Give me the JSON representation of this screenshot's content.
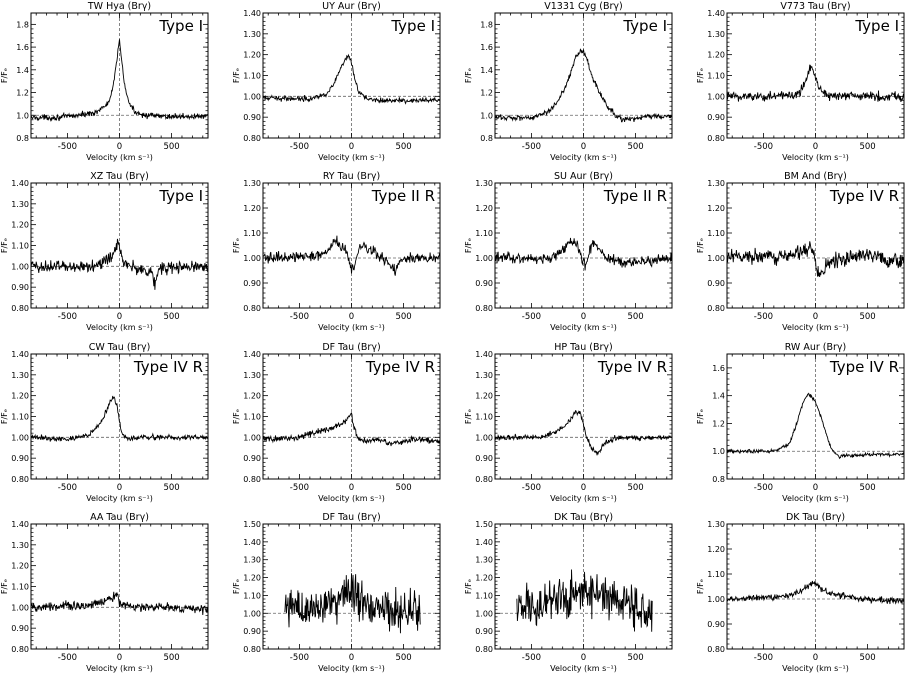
{
  "xtick_labels": [
    "-500",
    "0",
    "500"
  ],
  "xtick_values": [
    -500,
    0,
    500
  ],
  "xlim": [
    -850,
    850
  ],
  "xlabel": "Velocity (km s⁻¹)",
  "ylabel": "F/Fₑ",
  "chart_data": [
    {
      "type": "line",
      "title": "TW Hya (Brγ)",
      "label": "Type I",
      "ylim": [
        0.8,
        1.9
      ],
      "yticks": [
        0.8,
        1.0,
        1.2,
        1.4,
        1.6,
        1.8
      ],
      "ytick_labels": [
        "0.8",
        "1.0",
        "1.2",
        "1.4",
        "1.6",
        "1.8"
      ],
      "x": [
        -850,
        -600,
        -400,
        -250,
        -150,
        -100,
        -60,
        -30,
        0,
        20,
        50,
        100,
        150,
        250,
        400,
        600,
        850
      ],
      "y": [
        0.98,
        0.98,
        1.0,
        1.02,
        1.07,
        1.12,
        1.25,
        1.45,
        1.67,
        1.5,
        1.25,
        1.09,
        1.03,
        1.0,
        0.99,
        0.99,
        0.99
      ],
      "noise": 0.012
    },
    {
      "type": "line",
      "title": "UY Aur (Brγ)",
      "label": "Type I",
      "ylim": [
        0.8,
        1.4
      ],
      "yticks": [
        0.8,
        0.9,
        1.0,
        1.1,
        1.2,
        1.3,
        1.4
      ],
      "ytick_labels": [
        "0.80",
        "0.90",
        "1.00",
        "1.10",
        "1.20",
        "1.30",
        "1.40"
      ],
      "x": [
        -850,
        -400,
        -250,
        -180,
        -130,
        -90,
        -50,
        -20,
        0,
        30,
        70,
        150,
        300,
        850
      ],
      "y": [
        0.99,
        0.99,
        1.01,
        1.05,
        1.1,
        1.15,
        1.18,
        1.19,
        1.16,
        1.08,
        1.02,
        0.99,
        0.98,
        0.98
      ],
      "noise": 0.006
    },
    {
      "type": "line",
      "title": "V1331 Cyg (Brγ)",
      "label": "Type I",
      "ylim": [
        0.8,
        1.9
      ],
      "yticks": [
        0.8,
        1.0,
        1.2,
        1.4,
        1.6,
        1.8
      ],
      "ytick_labels": [
        "0.8",
        "1.0",
        "1.2",
        "1.4",
        "1.6",
        "1.8"
      ],
      "x": [
        -850,
        -500,
        -350,
        -250,
        -150,
        -80,
        -30,
        0,
        30,
        80,
        150,
        250,
        350,
        450,
        600,
        850
      ],
      "y": [
        0.98,
        0.98,
        1.02,
        1.12,
        1.3,
        1.5,
        1.57,
        1.56,
        1.5,
        1.35,
        1.2,
        1.05,
        0.97,
        0.96,
        0.99,
        0.99
      ],
      "noise": 0.012
    },
    {
      "type": "line",
      "title": "V773 Tau (Brγ)",
      "label": "Type I",
      "ylim": [
        0.8,
        1.4
      ],
      "yticks": [
        0.8,
        0.9,
        1.0,
        1.1,
        1.2,
        1.3,
        1.4
      ],
      "ytick_labels": [
        "0.80",
        "0.90",
        "1.00",
        "1.10",
        "1.20",
        "1.30",
        "1.40"
      ],
      "x": [
        -850,
        -300,
        -150,
        -100,
        -60,
        -40,
        -20,
        0,
        40,
        100,
        200,
        850
      ],
      "y": [
        1.0,
        1.0,
        1.02,
        1.07,
        1.13,
        1.15,
        1.12,
        1.1,
        1.04,
        1.01,
        1.0,
        1.0
      ],
      "noise": 0.012
    },
    {
      "type": "line",
      "title": "XZ Tau (Brγ)",
      "label": "Type I",
      "ylim": [
        0.8,
        1.4
      ],
      "yticks": [
        0.8,
        0.9,
        1.0,
        1.1,
        1.2,
        1.3,
        1.4
      ],
      "ytick_labels": [
        "0.80",
        "0.90",
        "1.00",
        "1.10",
        "1.20",
        "1.30",
        "1.40"
      ],
      "x": [
        -850,
        -300,
        -100,
        -50,
        -20,
        0,
        30,
        80,
        200,
        300,
        340,
        380,
        850
      ],
      "y": [
        1.0,
        1.0,
        1.03,
        1.07,
        1.12,
        1.1,
        1.02,
        1.0,
        0.99,
        0.97,
        0.92,
        0.99,
        1.0
      ],
      "noise": 0.015
    },
    {
      "type": "line",
      "title": "RY Tau (Brγ)",
      "label": "Type II R",
      "ylim": [
        0.8,
        1.3
      ],
      "yticks": [
        0.8,
        0.9,
        1.0,
        1.1,
        1.2,
        1.3
      ],
      "ytick_labels": [
        "0.80",
        "0.90",
        "1.00",
        "1.10",
        "1.20",
        "1.30"
      ],
      "x": [
        -850,
        -300,
        -200,
        -150,
        -100,
        -50,
        -10,
        20,
        60,
        100,
        200,
        300,
        380,
        420,
        470,
        600,
        850
      ],
      "y": [
        1.0,
        1.01,
        1.04,
        1.07,
        1.05,
        1.03,
        0.96,
        0.95,
        1.02,
        1.05,
        1.03,
        1.0,
        0.97,
        0.95,
        1.0,
        1.0,
        1.0
      ],
      "noise": 0.01
    },
    {
      "type": "line",
      "title": "SU Aur (Brγ)",
      "label": "Type II R",
      "ylim": [
        0.8,
        1.3
      ],
      "yticks": [
        0.8,
        0.9,
        1.0,
        1.1,
        1.2,
        1.3
      ],
      "ytick_labels": [
        "0.80",
        "0.90",
        "1.00",
        "1.10",
        "1.20",
        "1.30"
      ],
      "x": [
        -850,
        -300,
        -200,
        -120,
        -60,
        -20,
        20,
        60,
        100,
        150,
        220,
        300,
        400,
        850
      ],
      "y": [
        1.0,
        1.0,
        1.03,
        1.07,
        1.05,
        1.0,
        0.97,
        1.03,
        1.06,
        1.03,
        1.0,
        0.99,
        0.98,
        1.0
      ],
      "noise": 0.01
    },
    {
      "type": "line",
      "title": "BM And (Brγ)",
      "label": "Type IV R",
      "ylim": [
        0.8,
        1.3
      ],
      "yticks": [
        0.8,
        0.9,
        1.0,
        1.1,
        1.2,
        1.3
      ],
      "ytick_labels": [
        "0.80",
        "0.90",
        "1.00",
        "1.10",
        "1.20",
        "1.30"
      ],
      "x": [
        -850,
        -300,
        -100,
        -30,
        0,
        30,
        100,
        200,
        300,
        500,
        700,
        850
      ],
      "y": [
        1.0,
        1.01,
        1.03,
        1.05,
        0.97,
        0.93,
        0.97,
        0.99,
        1.0,
        1.02,
        0.99,
        0.98
      ],
      "noise": 0.014
    },
    {
      "type": "line",
      "title": "CW Tau (Brγ)",
      "label": "Type IV R",
      "ylim": [
        0.8,
        1.4
      ],
      "yticks": [
        0.8,
        0.9,
        1.0,
        1.1,
        1.2,
        1.3,
        1.4
      ],
      "ytick_labels": [
        "0.80",
        "0.90",
        "1.00",
        "1.10",
        "1.20",
        "1.30",
        "1.40"
      ],
      "x": [
        -850,
        -500,
        -300,
        -200,
        -130,
        -80,
        -50,
        -20,
        20,
        80,
        200,
        850
      ],
      "y": [
        1.0,
        0.99,
        1.01,
        1.06,
        1.12,
        1.18,
        1.19,
        1.14,
        1.02,
        0.99,
        1.0,
        1.0
      ],
      "noise": 0.006
    },
    {
      "type": "line",
      "title": "DF Tau (Brγ)",
      "label": "Type IV R",
      "ylim": [
        0.8,
        1.4
      ],
      "yticks": [
        0.8,
        0.9,
        1.0,
        1.1,
        1.2,
        1.3,
        1.4
      ],
      "ytick_labels": [
        "0.80",
        "0.90",
        "1.00",
        "1.10",
        "1.20",
        "1.30",
        "1.40"
      ],
      "x": [
        -850,
        -500,
        -300,
        -150,
        -50,
        0,
        20,
        60,
        120,
        250,
        400,
        600,
        850
      ],
      "y": [
        0.99,
        1.0,
        1.03,
        1.05,
        1.08,
        1.12,
        1.05,
        1.0,
        0.98,
        0.99,
        0.97,
        0.99,
        0.98
      ],
      "noise": 0.007
    },
    {
      "type": "line",
      "title": "HP Tau (Brγ)",
      "label": "Type IV R",
      "ylim": [
        0.8,
        1.4
      ],
      "yticks": [
        0.8,
        0.9,
        1.0,
        1.1,
        1.2,
        1.3,
        1.4
      ],
      "ytick_labels": [
        "0.80",
        "0.90",
        "1.00",
        "1.10",
        "1.20",
        "1.30",
        "1.40"
      ],
      "x": [
        -850,
        -400,
        -250,
        -150,
        -80,
        -30,
        30,
        80,
        130,
        200,
        300,
        850
      ],
      "y": [
        1.0,
        1.0,
        1.03,
        1.07,
        1.12,
        1.12,
        1.0,
        0.95,
        0.92,
        0.97,
        1.0,
        1.0
      ],
      "noise": 0.006
    },
    {
      "type": "line",
      "title": "RW Aur (Brγ)",
      "label": "Type IV R",
      "ylim": [
        0.8,
        1.7
      ],
      "yticks": [
        0.8,
        1.0,
        1.2,
        1.4,
        1.6
      ],
      "ytick_labels": [
        "0.8",
        "1.0",
        "1.2",
        "1.4",
        "1.6"
      ],
      "x": [
        -850,
        -400,
        -250,
        -180,
        -120,
        -70,
        -20,
        30,
        80,
        150,
        220,
        300,
        850
      ],
      "y": [
        1.0,
        1.0,
        1.05,
        1.2,
        1.35,
        1.42,
        1.38,
        1.3,
        1.18,
        1.02,
        0.96,
        0.97,
        0.98
      ],
      "noise": 0.006
    },
    {
      "type": "line",
      "title": "AA Tau (Brγ)",
      "label": "",
      "ylim": [
        0.8,
        1.4
      ],
      "yticks": [
        0.8,
        0.9,
        1.0,
        1.1,
        1.2,
        1.3,
        1.4
      ],
      "ytick_labels": [
        "0.80",
        "0.90",
        "1.00",
        "1.10",
        "1.20",
        "1.30",
        "1.40"
      ],
      "x": [
        -850,
        -300,
        -150,
        -50,
        -20,
        0,
        40,
        150,
        300,
        850
      ],
      "y": [
        1.0,
        1.01,
        1.03,
        1.05,
        1.06,
        1.02,
        1.01,
        1.0,
        1.0,
        0.99
      ],
      "noise": 0.01
    },
    {
      "type": "line",
      "title": "DF Tau (Brγ)",
      "label": "",
      "ylim": [
        0.8,
        1.5
      ],
      "yticks": [
        0.8,
        0.9,
        1.0,
        1.1,
        1.2,
        1.3,
        1.4,
        1.5
      ],
      "ytick_labels": [
        "0.80",
        "0.90",
        "1.00",
        "1.10",
        "1.20",
        "1.30",
        "1.40",
        "1.50"
      ],
      "x": [
        -640,
        -300,
        -100,
        0,
        50,
        150,
        400,
        660
      ],
      "y": [
        1.02,
        1.04,
        1.07,
        1.14,
        1.1,
        1.05,
        1.03,
        1.0
      ],
      "noise": 0.055
    },
    {
      "type": "line",
      "title": "DK Tau (Brγ)",
      "label": "",
      "ylim": [
        0.8,
        1.5
      ],
      "yticks": [
        0.8,
        0.9,
        1.0,
        1.1,
        1.2,
        1.3,
        1.4,
        1.5
      ],
      "ytick_labels": [
        "0.80",
        "0.90",
        "1.00",
        "1.10",
        "1.20",
        "1.30",
        "1.40",
        "1.50"
      ],
      "x": [
        -640,
        -300,
        -100,
        0,
        50,
        150,
        400,
        660
      ],
      "y": [
        1.03,
        1.07,
        1.1,
        1.13,
        1.12,
        1.1,
        1.05,
        1.01
      ],
      "noise": 0.06
    },
    {
      "type": "line",
      "title": "DK Tau (Brγ)",
      "label": "",
      "ylim": [
        0.8,
        1.3
      ],
      "yticks": [
        0.8,
        0.9,
        1.0,
        1.1,
        1.2,
        1.3
      ],
      "ytick_labels": [
        "0.80",
        "0.90",
        "1.00",
        "1.10",
        "1.20",
        "1.30"
      ],
      "x": [
        -850,
        -300,
        -150,
        -50,
        0,
        60,
        150,
        300,
        500,
        850
      ],
      "y": [
        1.0,
        1.01,
        1.03,
        1.06,
        1.06,
        1.04,
        1.02,
        1.01,
        1.0,
        0.99
      ],
      "noise": 0.006
    }
  ]
}
